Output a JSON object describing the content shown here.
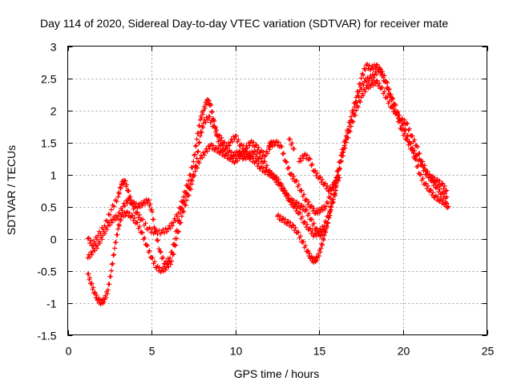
{
  "chart_data": {
    "type": "scatter",
    "title": "Day 114 of 2020, Sidereal Day-to-day VTEC variation (SDTVAR) for receiver mate",
    "xlabel": "GPS time / hours",
    "ylabel": "SDTVAR / TECUs",
    "xlim": [
      0,
      25
    ],
    "ylim": [
      -1.5,
      3
    ],
    "xticks": [
      0,
      5,
      10,
      15,
      20,
      25
    ],
    "xtick_labels": [
      "0",
      "5",
      "10",
      "15",
      "20",
      "25"
    ],
    "yticks": [
      -1.5,
      -1,
      -0.5,
      0,
      0.5,
      1,
      1.5,
      2,
      2.5,
      3
    ],
    "ytick_labels": [
      "-1.5",
      "-1",
      "-0.5",
      "0",
      "0.5",
      "1",
      "1.5",
      "2",
      "2.5",
      "3"
    ],
    "grid": true,
    "marker": "+",
    "color": "#ff0000",
    "series": [
      {
        "name": "track-1",
        "points": [
          [
            1.2,
            0.0
          ],
          [
            1.5,
            -0.1
          ],
          [
            1.8,
            0.05
          ],
          [
            2.2,
            0.2
          ],
          [
            2.6,
            0.45
          ],
          [
            3.0,
            0.65
          ],
          [
            3.2,
            0.85
          ],
          [
            3.4,
            0.9
          ],
          [
            3.6,
            0.75
          ],
          [
            3.8,
            0.55
          ],
          [
            4.1,
            0.4
          ],
          [
            4.4,
            0.3
          ],
          [
            4.8,
            0.15
          ],
          [
            5.2,
            0.1
          ],
          [
            5.6,
            0.1
          ],
          [
            6.0,
            0.15
          ],
          [
            6.3,
            0.25
          ],
          [
            6.6,
            0.4
          ],
          [
            6.9,
            0.65
          ],
          [
            7.2,
            0.9
          ],
          [
            7.5,
            1.2
          ],
          [
            7.7,
            1.55
          ],
          [
            7.9,
            1.85
          ],
          [
            8.1,
            2.0
          ],
          [
            8.3,
            2.15
          ],
          [
            8.5,
            2.1
          ],
          [
            8.7,
            1.85
          ],
          [
            8.9,
            1.6
          ],
          [
            9.1,
            1.45
          ],
          [
            9.4,
            1.4
          ],
          [
            9.7,
            1.5
          ],
          [
            10.0,
            1.6
          ],
          [
            10.3,
            1.45
          ],
          [
            10.6,
            1.4
          ],
          [
            10.9,
            1.5
          ],
          [
            11.2,
            1.45
          ],
          [
            11.5,
            1.35
          ],
          [
            11.8,
            1.3
          ],
          [
            12.1,
            1.45
          ],
          [
            12.4,
            1.5
          ],
          [
            12.7,
            1.45
          ],
          [
            13.0,
            1.2
          ],
          [
            13.3,
            1.0
          ],
          [
            13.6,
            0.9
          ],
          [
            13.9,
            0.75
          ],
          [
            14.2,
            0.6
          ],
          [
            14.5,
            0.5
          ],
          [
            14.8,
            0.4
          ],
          [
            15.1,
            0.45
          ],
          [
            15.4,
            0.5
          ],
          [
            15.7,
            0.7
          ],
          [
            16.0,
            0.95
          ],
          [
            16.3,
            1.3
          ],
          [
            16.6,
            1.6
          ],
          [
            16.9,
            1.9
          ],
          [
            17.2,
            2.2
          ],
          [
            17.5,
            2.5
          ],
          [
            17.8,
            2.7
          ],
          [
            18.1,
            2.65
          ],
          [
            18.4,
            2.7
          ],
          [
            18.7,
            2.6
          ],
          [
            19.0,
            2.45
          ],
          [
            19.3,
            2.2
          ],
          [
            19.6,
            1.95
          ],
          [
            19.9,
            1.7
          ],
          [
            20.2,
            1.55
          ],
          [
            20.5,
            1.4
          ],
          [
            20.8,
            1.3
          ],
          [
            21.1,
            1.15
          ],
          [
            21.4,
            1.0
          ],
          [
            21.7,
            0.95
          ],
          [
            22.0,
            0.9
          ],
          [
            22.3,
            0.85
          ],
          [
            22.6,
            0.75
          ]
        ]
      },
      {
        "name": "track-2",
        "points": [
          [
            1.2,
            -0.55
          ],
          [
            1.4,
            -0.7
          ],
          [
            1.6,
            -0.85
          ],
          [
            1.8,
            -0.95
          ],
          [
            2.0,
            -1.0
          ],
          [
            2.2,
            -0.95
          ],
          [
            2.4,
            -0.8
          ],
          [
            2.6,
            -0.5
          ],
          [
            2.8,
            -0.15
          ],
          [
            3.0,
            0.15
          ],
          [
            3.2,
            0.35
          ],
          [
            3.5,
            0.4
          ],
          [
            3.8,
            0.35
          ],
          [
            4.1,
            0.25
          ],
          [
            4.4,
            0.1
          ],
          [
            4.7,
            -0.1
          ],
          [
            5.0,
            -0.3
          ],
          [
            5.3,
            -0.45
          ],
          [
            5.6,
            -0.5
          ],
          [
            5.9,
            -0.45
          ],
          [
            6.2,
            -0.35
          ],
          [
            6.5,
            0.0
          ],
          [
            6.8,
            0.35
          ],
          [
            7.1,
            0.6
          ],
          [
            7.4,
            0.85
          ],
          [
            7.7,
            1.25
          ],
          [
            7.9,
            1.6
          ],
          [
            8.1,
            1.8
          ],
          [
            8.4,
            1.9
          ],
          [
            8.7,
            1.75
          ],
          [
            9.0,
            1.6
          ],
          [
            9.3,
            1.5
          ],
          [
            9.6,
            1.35
          ],
          [
            9.9,
            1.3
          ],
          [
            10.2,
            1.35
          ],
          [
            10.5,
            1.25
          ],
          [
            10.8,
            1.3
          ],
          [
            11.1,
            1.35
          ],
          [
            11.4,
            1.25
          ],
          [
            11.7,
            1.2
          ],
          [
            12.0,
            1.05
          ],
          [
            12.3,
            0.95
          ],
          [
            12.6,
            0.85
          ],
          [
            12.9,
            0.75
          ],
          [
            13.2,
            0.6
          ],
          [
            13.5,
            0.5
          ],
          [
            13.8,
            0.4
          ],
          [
            14.1,
            0.25
          ],
          [
            14.4,
            0.15
          ],
          [
            14.7,
            0.05
          ],
          [
            15.0,
            0.1
          ],
          [
            15.3,
            0.2
          ],
          [
            15.6,
            0.4
          ],
          [
            15.9,
            0.7
          ],
          [
            16.2,
            1.1
          ],
          [
            16.5,
            1.45
          ],
          [
            16.8,
            1.75
          ],
          [
            17.1,
            2.05
          ],
          [
            17.4,
            2.3
          ],
          [
            17.7,
            2.45
          ],
          [
            18.0,
            2.5
          ],
          [
            18.3,
            2.55
          ],
          [
            18.6,
            2.65
          ],
          [
            18.9,
            2.45
          ],
          [
            19.2,
            2.25
          ],
          [
            19.5,
            2.1
          ],
          [
            19.8,
            1.85
          ],
          [
            20.1,
            1.7
          ],
          [
            20.4,
            1.5
          ],
          [
            20.7,
            1.25
          ],
          [
            21.0,
            1.0
          ],
          [
            21.3,
            0.85
          ],
          [
            21.6,
            0.75
          ],
          [
            21.9,
            0.65
          ],
          [
            22.2,
            0.6
          ],
          [
            22.5,
            0.55
          ],
          [
            22.7,
            0.5
          ]
        ]
      },
      {
        "name": "track-3",
        "points": [
          [
            1.2,
            -0.3
          ],
          [
            1.5,
            -0.2
          ],
          [
            1.8,
            -0.1
          ],
          [
            2.1,
            0.05
          ],
          [
            2.4,
            0.2
          ],
          [
            2.7,
            0.3
          ],
          [
            3.0,
            0.35
          ],
          [
            3.3,
            0.5
          ],
          [
            3.6,
            0.6
          ],
          [
            3.9,
            0.55
          ],
          [
            4.2,
            0.5
          ],
          [
            4.5,
            0.55
          ],
          [
            4.8,
            0.6
          ],
          [
            5.0,
            0.45
          ],
          [
            5.2,
            0.15
          ],
          [
            5.5,
            -0.2
          ],
          [
            5.8,
            -0.4
          ],
          [
            6.1,
            -0.3
          ],
          [
            6.4,
            0.0
          ],
          [
            6.7,
            0.4
          ],
          [
            7.0,
            0.65
          ],
          [
            7.3,
            0.85
          ],
          [
            7.6,
            1.05
          ],
          [
            7.9,
            1.25
          ],
          [
            8.2,
            1.35
          ],
          [
            8.5,
            1.45
          ],
          [
            8.8,
            1.4
          ],
          [
            9.1,
            1.35
          ],
          [
            9.4,
            1.3
          ],
          [
            9.7,
            1.25
          ],
          [
            10.0,
            1.2
          ],
          [
            10.3,
            1.3
          ],
          [
            10.6,
            1.35
          ],
          [
            10.9,
            1.25
          ],
          [
            11.2,
            1.2
          ],
          [
            11.5,
            1.1
          ],
          [
            11.8,
            1.05
          ],
          [
            12.1,
            1.0
          ],
          [
            12.4,
            0.95
          ],
          [
            12.7,
            0.85
          ],
          [
            13.0,
            0.7
          ],
          [
            13.3,
            0.6
          ],
          [
            13.6,
            0.55
          ],
          [
            13.9,
            0.5
          ],
          [
            14.2,
            0.45
          ],
          [
            14.5,
            0.3
          ],
          [
            14.8,
            0.15
          ],
          [
            15.1,
            0.05
          ],
          [
            15.4,
            0.15
          ],
          [
            15.7,
            0.45
          ],
          [
            16.0,
            0.8
          ],
          [
            16.3,
            1.2
          ],
          [
            16.6,
            1.5
          ],
          [
            16.9,
            1.75
          ],
          [
            17.2,
            2.0
          ],
          [
            17.5,
            2.2
          ],
          [
            17.8,
            2.35
          ],
          [
            18.1,
            2.4
          ],
          [
            18.4,
            2.45
          ],
          [
            18.7,
            2.35
          ],
          [
            19.0,
            2.2
          ],
          [
            19.3,
            2.05
          ],
          [
            19.6,
            1.95
          ],
          [
            19.9,
            1.85
          ],
          [
            20.2,
            1.8
          ],
          [
            20.5,
            1.6
          ],
          [
            20.8,
            1.45
          ],
          [
            21.1,
            1.2
          ],
          [
            21.4,
            1.05
          ],
          [
            21.7,
            0.9
          ],
          [
            22.0,
            0.8
          ],
          [
            22.3,
            0.7
          ],
          [
            22.6,
            0.65
          ]
        ]
      },
      {
        "name": "track-4",
        "points": [
          [
            12.5,
            0.35
          ],
          [
            12.8,
            0.3
          ],
          [
            13.1,
            0.25
          ],
          [
            13.4,
            0.2
          ],
          [
            13.7,
            0.1
          ],
          [
            14.0,
            -0.05
          ],
          [
            14.3,
            -0.2
          ],
          [
            14.5,
            -0.3
          ],
          [
            14.7,
            -0.35
          ],
          [
            14.9,
            -0.3
          ],
          [
            15.1,
            -0.15
          ],
          [
            15.3,
            0.05
          ],
          [
            15.5,
            0.25
          ],
          [
            15.7,
            0.5
          ],
          [
            16.0,
            0.75
          ],
          [
            13.8,
            1.2
          ],
          [
            14.1,
            1.3
          ],
          [
            14.4,
            1.25
          ],
          [
            14.7,
            1.05
          ],
          [
            15.0,
            0.95
          ],
          [
            15.3,
            0.85
          ],
          [
            15.6,
            0.75
          ],
          [
            15.9,
            0.85
          ],
          [
            16.2,
            0.95
          ],
          [
            13.2,
            1.55
          ],
          [
            13.5,
            1.4
          ],
          [
            12.0,
            1.45
          ],
          [
            12.2,
            1.5
          ]
        ]
      }
    ]
  }
}
